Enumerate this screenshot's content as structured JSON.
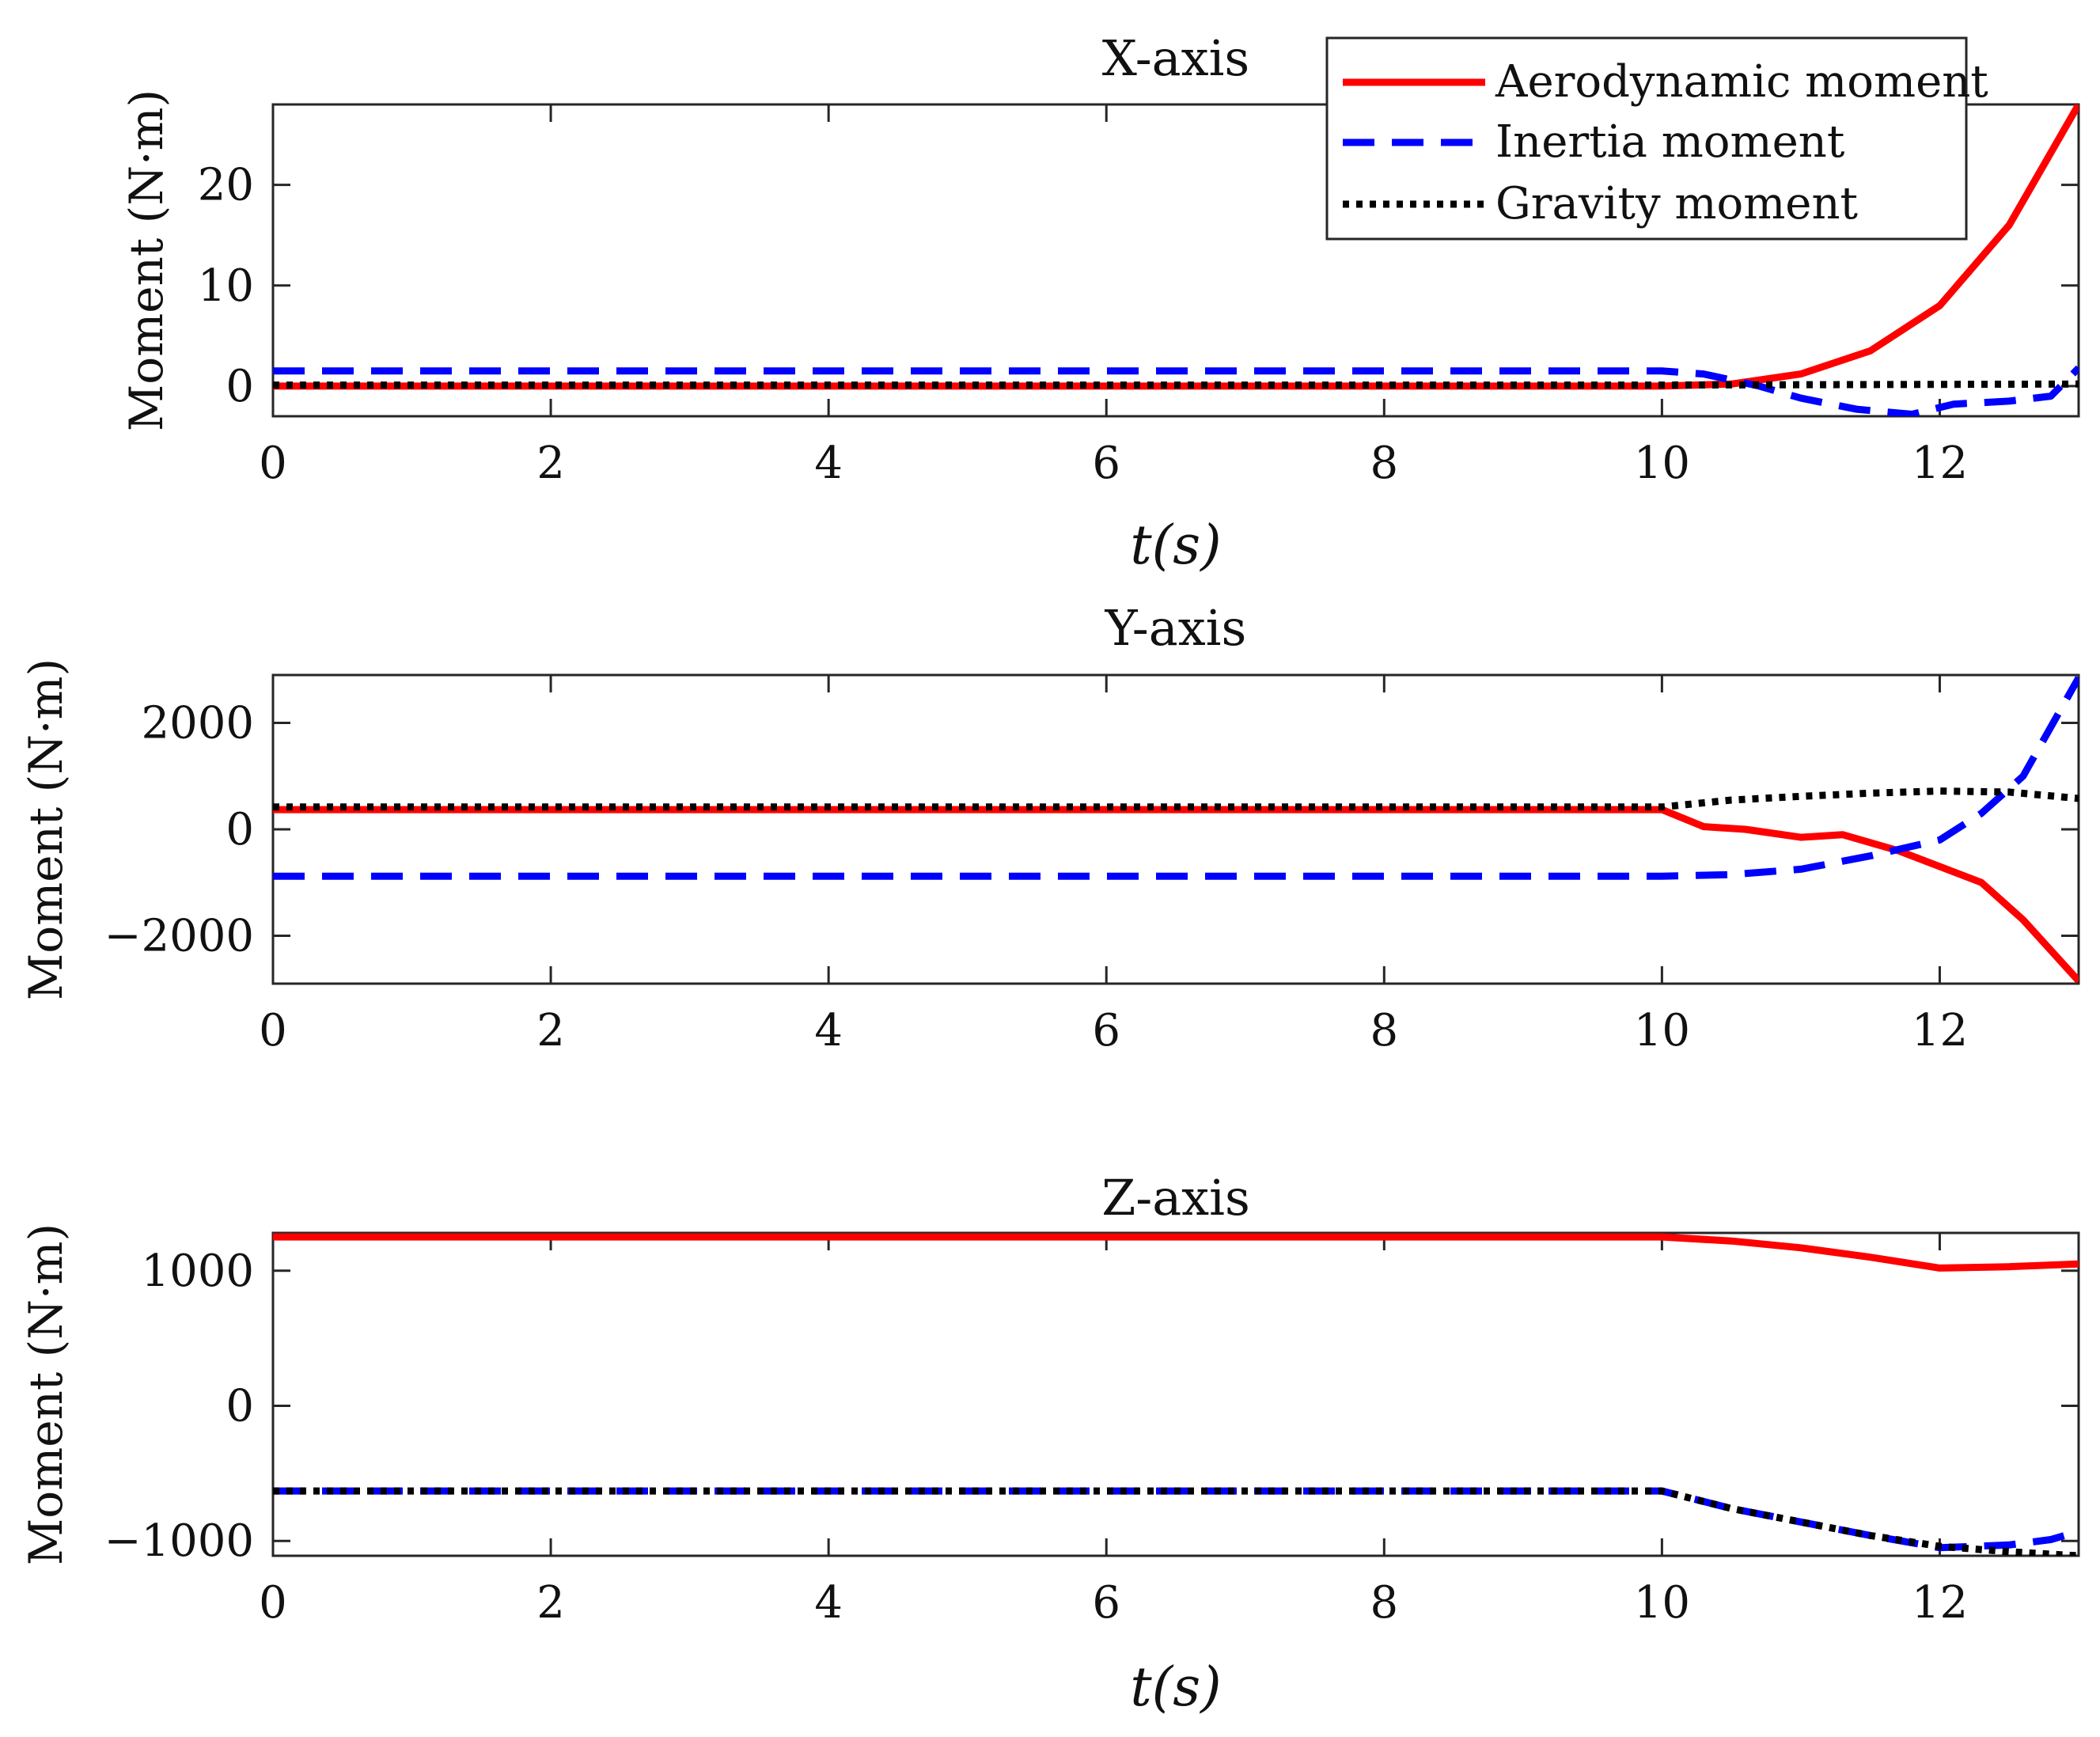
{
  "legend": {
    "entries": [
      {
        "name": "Aerodynamic moment",
        "color": "#ff0000",
        "style": "solid"
      },
      {
        "name": "Inertia moment",
        "color": "#0000ff",
        "style": "dashed"
      },
      {
        "name": "Gravity moment",
        "color": "#000000",
        "style": "dotted"
      }
    ]
  },
  "chart_data": [
    {
      "type": "line",
      "title": "X-axis",
      "xlabel": "t(s)",
      "ylabel": "Moment (N·m)",
      "xlim": [
        0,
        13
      ],
      "ylim": [
        -3,
        28
      ],
      "xticks": [
        0,
        2,
        4,
        6,
        8,
        10,
        12
      ],
      "xtick_labels": [
        "0",
        "2",
        "4",
        "6",
        "8",
        "10",
        "12"
      ],
      "yticks": [
        0,
        10,
        20
      ],
      "ytick_labels": [
        "0",
        "10",
        "20"
      ],
      "show_xlabel": true,
      "series": [
        {
          "name": "Aerodynamic moment",
          "color": "#ff0000",
          "style": "solid",
          "x": [
            0,
            10,
            10.5,
            11,
            11.5,
            12,
            12.5,
            13
          ],
          "y": [
            0,
            0,
            0.2,
            1.2,
            3.5,
            8,
            16,
            28
          ]
        },
        {
          "name": "Inertia moment",
          "color": "#0000ff",
          "style": "dashed",
          "x": [
            0,
            10,
            10.3,
            10.7,
            11,
            11.4,
            11.8,
            12.1,
            12.5,
            12.8,
            13
          ],
          "y": [
            1.5,
            1.5,
            1.2,
            0,
            -1.2,
            -2.3,
            -2.8,
            -1.8,
            -1.5,
            -1,
            1.8
          ]
        },
        {
          "name": "Gravity moment",
          "color": "#000000",
          "style": "dotted",
          "x": [
            0,
            10,
            13
          ],
          "y": [
            0.1,
            0.1,
            0.2
          ]
        }
      ]
    },
    {
      "type": "line",
      "title": "Y-axis",
      "xlabel": "",
      "ylabel": "Moment (N·m)",
      "xlim": [
        0,
        13
      ],
      "ylim": [
        -2900,
        2900
      ],
      "xticks": [
        0,
        2,
        4,
        6,
        8,
        10,
        12
      ],
      "xtick_labels": [
        "0",
        "2",
        "4",
        "6",
        "8",
        "10",
        "12"
      ],
      "yticks": [
        -2000,
        0,
        2000
      ],
      "ytick_labels": [
        "−2000",
        "0",
        "2000"
      ],
      "show_xlabel": false,
      "series": [
        {
          "name": "Aerodynamic moment",
          "color": "#ff0000",
          "style": "solid",
          "x": [
            0,
            10,
            10.3,
            10.6,
            11,
            11.3,
            11.7,
            12,
            12.3,
            12.6,
            13
          ],
          "y": [
            370,
            370,
            50,
            0,
            -150,
            -100,
            -400,
            -700,
            -1000,
            -1700,
            -2850
          ]
        },
        {
          "name": "Inertia moment",
          "color": "#0000ff",
          "style": "dashed",
          "x": [
            0,
            10,
            10.5,
            11,
            11.5,
            12,
            12.3,
            12.6,
            13
          ],
          "y": [
            -880,
            -880,
            -850,
            -750,
            -500,
            -200,
            300,
            1000,
            2850
          ]
        },
        {
          "name": "Gravity moment",
          "color": "#000000",
          "style": "dotted",
          "x": [
            0,
            10,
            10.5,
            11,
            11.5,
            12,
            12.5,
            13
          ],
          "y": [
            420,
            420,
            550,
            620,
            680,
            720,
            700,
            580
          ]
        }
      ]
    },
    {
      "type": "line",
      "title": "Z-axis",
      "xlabel": "t(s)",
      "ylabel": "Moment (N·m)",
      "xlim": [
        0,
        13
      ],
      "ylim": [
        -1110,
        1280
      ],
      "xticks": [
        0,
        2,
        4,
        6,
        8,
        10,
        12
      ],
      "xtick_labels": [
        "0",
        "2",
        "4",
        "6",
        "8",
        "10",
        "12"
      ],
      "yticks": [
        -1000,
        0,
        1000
      ],
      "ytick_labels": [
        "−1000",
        "0",
        "1000"
      ],
      "show_xlabel": true,
      "series": [
        {
          "name": "Aerodynamic moment",
          "color": "#ff0000",
          "style": "solid",
          "x": [
            0,
            10,
            10.5,
            11,
            11.5,
            12,
            12.5,
            13
          ],
          "y": [
            1250,
            1250,
            1220,
            1170,
            1100,
            1020,
            1030,
            1050
          ]
        },
        {
          "name": "Inertia moment",
          "color": "#0000ff",
          "style": "dashed",
          "x": [
            0,
            10,
            10.5,
            11,
            11.5,
            12,
            12.5,
            12.8,
            13
          ],
          "y": [
            -630,
            -630,
            -760,
            -860,
            -960,
            -1050,
            -1030,
            -990,
            -930
          ]
        },
        {
          "name": "Gravity moment",
          "color": "#000000",
          "style": "dotted",
          "x": [
            0,
            10,
            10.5,
            11,
            11.5,
            12,
            12.5,
            13
          ],
          "y": [
            -630,
            -630,
            -760,
            -860,
            -960,
            -1040,
            -1080,
            -1110
          ]
        }
      ]
    }
  ]
}
